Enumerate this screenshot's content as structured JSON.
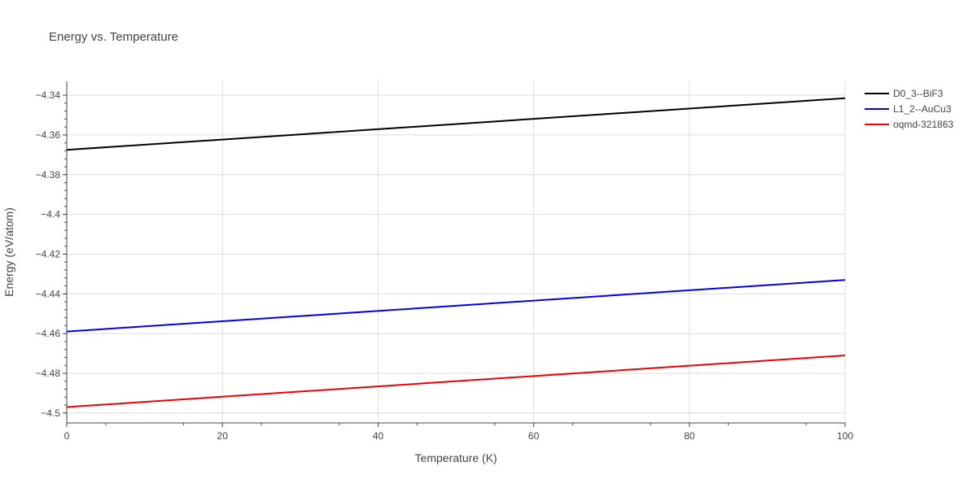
{
  "chart_data": {
    "type": "line",
    "title": "Energy vs. Temperature",
    "xlabel": "Temperature (K)",
    "ylabel": "Energy (eV/atom)",
    "xlim": [
      0,
      100
    ],
    "ylim": [
      -4.505,
      -4.333
    ],
    "x_ticks": [
      0,
      20,
      40,
      60,
      80,
      100
    ],
    "x_tick_labels": [
      "0",
      "20",
      "40",
      "60",
      "80",
      "100"
    ],
    "y_ticks": [
      -4.34,
      -4.36,
      -4.38,
      -4.4,
      -4.42,
      -4.44,
      -4.46,
      -4.48,
      -4.5
    ],
    "y_tick_labels": [
      "−4.34",
      "−4.36",
      "−4.38",
      "−4.4",
      "−4.42",
      "−4.44",
      "−4.46",
      "−4.48",
      "−4.5"
    ],
    "grid": true,
    "legend_position": "top-right",
    "series": [
      {
        "name": "D0_3--BiF3",
        "color": "#000000",
        "x": [
          0,
          100
        ],
        "y": [
          -4.3675,
          -4.3415
        ]
      },
      {
        "name": "L1_2--AuCu3",
        "color": "#0000ee",
        "x": [
          0,
          100
        ],
        "y": [
          -4.459,
          -4.433
        ]
      },
      {
        "name": "oqmd-321863",
        "color": "#ee0000",
        "x": [
          0,
          100
        ],
        "y": [
          -4.497,
          -4.471
        ]
      }
    ]
  }
}
